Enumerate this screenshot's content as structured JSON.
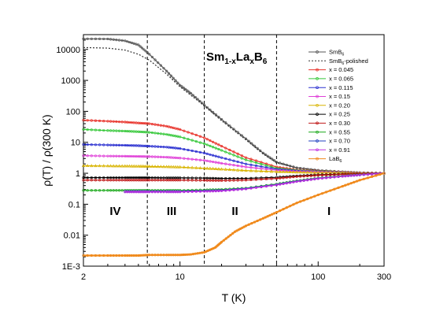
{
  "chart_data": {
    "type": "line",
    "title": "",
    "annotation": {
      "base": "Sm",
      "sub1": "1-x",
      "mid": "La",
      "sub2": "x",
      "end": "B",
      "sub3": "6"
    },
    "xlabel": "T (K)",
    "ylabel": "ρ(T) / ρ(300 K)",
    "xscale": "log",
    "yscale": "log",
    "xlim": [
      2,
      300
    ],
    "ylim": [
      0.001,
      30000
    ],
    "x_ticks": [
      {
        "value": 2,
        "label": "2"
      },
      {
        "value": 10,
        "label": "10"
      },
      {
        "value": 100,
        "label": "100"
      },
      {
        "value": 300,
        "label": "300"
      }
    ],
    "y_ticks": [
      {
        "value": 0.001,
        "label": "1E-3"
      },
      {
        "value": 0.01,
        "label": "0.01"
      },
      {
        "value": 0.1,
        "label": "0.1"
      },
      {
        "value": 1,
        "label": "1"
      },
      {
        "value": 10,
        "label": "10"
      },
      {
        "value": 100,
        "label": "100"
      },
      {
        "value": 1000,
        "label": "1000"
      },
      {
        "value": 10000,
        "label": "10000"
      }
    ],
    "region_boundaries_K": [
      5.8,
      15,
      50
    ],
    "regions": [
      {
        "label": "IV",
        "x": 3.4,
        "y": 0.06
      },
      {
        "label": "III",
        "x": 8.7,
        "y": 0.06
      },
      {
        "label": "II",
        "x": 25,
        "y": 0.06
      },
      {
        "label": "I",
        "x": 120,
        "y": 0.06
      }
    ],
    "legend_position": "top-right",
    "grid": false,
    "series": [
      {
        "name": "SmB",
        "name_sub": "6",
        "color": "#555555",
        "marker": "circle",
        "dash": "",
        "points": [
          [
            2,
            22000
          ],
          [
            3,
            21800
          ],
          [
            4,
            19000
          ],
          [
            5,
            14000
          ],
          [
            6,
            7000
          ],
          [
            8,
            2000
          ],
          [
            10,
            700
          ],
          [
            12,
            380
          ],
          [
            15,
            160
          ],
          [
            20,
            55
          ],
          [
            30,
            13
          ],
          [
            40,
            4.5
          ],
          [
            50,
            2.3
          ],
          [
            70,
            1.5
          ],
          [
            100,
            1.25
          ],
          [
            150,
            1.12
          ],
          [
            200,
            1.05
          ],
          [
            300,
            1
          ]
        ]
      },
      {
        "name": "SmB",
        "name_sub": "6",
        "name_suffix": "-polished",
        "color": "#333333",
        "marker": "",
        "dash": "2,2",
        "points": [
          [
            2,
            11500
          ],
          [
            3,
            11000
          ],
          [
            4,
            9500
          ],
          [
            5,
            7000
          ],
          [
            6,
            4500
          ],
          [
            8,
            1600
          ],
          [
            10,
            620
          ],
          [
            12,
            330
          ],
          [
            15,
            150
          ],
          [
            20,
            50
          ],
          [
            30,
            12
          ],
          [
            40,
            4.2
          ],
          [
            50,
            2.2
          ],
          [
            70,
            1.5
          ],
          [
            100,
            1.25
          ],
          [
            150,
            1.12
          ],
          [
            200,
            1.05
          ],
          [
            300,
            1
          ]
        ]
      },
      {
        "name": "x = 0.045",
        "color": "#e8322a",
        "marker": "circle",
        "dash": "",
        "points": [
          [
            2,
            52
          ],
          [
            3,
            48
          ],
          [
            4,
            45
          ],
          [
            5,
            42
          ],
          [
            6,
            40
          ],
          [
            8,
            33
          ],
          [
            10,
            26
          ],
          [
            15,
            14
          ],
          [
            20,
            7.5
          ],
          [
            30,
            3.2
          ],
          [
            50,
            1.6
          ],
          [
            70,
            1.3
          ],
          [
            100,
            1.18
          ],
          [
            150,
            1.1
          ],
          [
            200,
            1.05
          ],
          [
            300,
            1
          ]
        ]
      },
      {
        "name": "x = 0.065",
        "color": "#36c83a",
        "marker": "circle",
        "dash": "",
        "points": [
          [
            2,
            26
          ],
          [
            3,
            24
          ],
          [
            4,
            23
          ],
          [
            5,
            22
          ],
          [
            6,
            21
          ],
          [
            8,
            18
          ],
          [
            10,
            15
          ],
          [
            15,
            9
          ],
          [
            20,
            5.5
          ],
          [
            30,
            2.7
          ],
          [
            50,
            1.45
          ],
          [
            70,
            1.25
          ],
          [
            100,
            1.15
          ],
          [
            150,
            1.08
          ],
          [
            200,
            1.04
          ],
          [
            300,
            1
          ]
        ]
      },
      {
        "name": "x = 0.115",
        "color": "#2b30d0",
        "marker": "circle",
        "dash": "",
        "points": [
          [
            2,
            8.5
          ],
          [
            3,
            8.2
          ],
          [
            4,
            8
          ],
          [
            5,
            7.8
          ],
          [
            6,
            7.5
          ],
          [
            8,
            7
          ],
          [
            10,
            6.3
          ],
          [
            15,
            4.5
          ],
          [
            20,
            3.2
          ],
          [
            30,
            2
          ],
          [
            50,
            1.35
          ],
          [
            70,
            1.2
          ],
          [
            100,
            1.12
          ],
          [
            150,
            1.06
          ],
          [
            200,
            1.03
          ],
          [
            300,
            1
          ]
        ]
      },
      {
        "name": "x = 0.15",
        "color": "#e040d8",
        "marker": "circle",
        "dash": "",
        "points": [
          [
            2,
            3.7
          ],
          [
            3,
            3.6
          ],
          [
            4,
            3.55
          ],
          [
            5,
            3.5
          ],
          [
            6,
            3.45
          ],
          [
            8,
            3.3
          ],
          [
            10,
            3.1
          ],
          [
            15,
            2.6
          ],
          [
            20,
            2.1
          ],
          [
            30,
            1.6
          ],
          [
            50,
            1.25
          ],
          [
            70,
            1.15
          ],
          [
            100,
            1.1
          ],
          [
            150,
            1.05
          ],
          [
            200,
            1.02
          ],
          [
            300,
            1
          ]
        ]
      },
      {
        "name": "x = 0.20",
        "color": "#d8b400",
        "marker": "triangle",
        "dash": "",
        "points": [
          [
            2,
            1.75
          ],
          [
            3,
            1.72
          ],
          [
            4,
            1.7
          ],
          [
            5,
            1.68
          ],
          [
            6,
            1.66
          ],
          [
            8,
            1.62
          ],
          [
            10,
            1.58
          ],
          [
            15,
            1.45
          ],
          [
            20,
            1.35
          ],
          [
            30,
            1.22
          ],
          [
            50,
            1.12
          ],
          [
            70,
            1.08
          ],
          [
            100,
            1.05
          ],
          [
            150,
            1.03
          ],
          [
            200,
            1.01
          ],
          [
            300,
            1
          ]
        ]
      },
      {
        "name": "x = 0.25",
        "color": "#000000",
        "marker": "circle",
        "dash": "",
        "points": [
          [
            2,
            0.72
          ],
          [
            3,
            0.72
          ],
          [
            4,
            0.72
          ],
          [
            5,
            0.72
          ],
          [
            6,
            0.72
          ],
          [
            8,
            0.71
          ],
          [
            10,
            0.71
          ],
          [
            15,
            0.7
          ],
          [
            20,
            0.68
          ],
          [
            30,
            0.68
          ],
          [
            50,
            0.74
          ],
          [
            70,
            0.82
          ],
          [
            100,
            0.89
          ],
          [
            150,
            0.94
          ],
          [
            200,
            0.97
          ],
          [
            300,
            1
          ]
        ]
      },
      {
        "name": "x = 0.30",
        "color": "#c01818",
        "marker": "circle",
        "dash": "",
        "points": [
          [
            2,
            0.6
          ],
          [
            3,
            0.6
          ],
          [
            4,
            0.6
          ],
          [
            5,
            0.6
          ],
          [
            6,
            0.6
          ],
          [
            8,
            0.6
          ],
          [
            10,
            0.6
          ],
          [
            15,
            0.59
          ],
          [
            20,
            0.58
          ],
          [
            30,
            0.6
          ],
          [
            50,
            0.68
          ],
          [
            70,
            0.78
          ],
          [
            100,
            0.86
          ],
          [
            150,
            0.92
          ],
          [
            200,
            0.96
          ],
          [
            300,
            1
          ]
        ]
      },
      {
        "name": "x = 0.55",
        "color": "#18a818",
        "marker": "circle",
        "dash": "",
        "points": [
          [
            2,
            0.28
          ],
          [
            3,
            0.28
          ],
          [
            4,
            0.28
          ],
          [
            5,
            0.28
          ],
          [
            6,
            0.28
          ],
          [
            8,
            0.28
          ],
          [
            10,
            0.28
          ],
          [
            15,
            0.29
          ],
          [
            20,
            0.3
          ],
          [
            30,
            0.33
          ],
          [
            50,
            0.45
          ],
          [
            70,
            0.57
          ],
          [
            100,
            0.7
          ],
          [
            150,
            0.82
          ],
          [
            200,
            0.9
          ],
          [
            300,
            1
          ]
        ]
      },
      {
        "name": "x = 0.70",
        "color": "#2040c0",
        "marker": "circle",
        "dash": "",
        "points": [
          [
            4,
            0.26
          ],
          [
            5,
            0.26
          ],
          [
            6,
            0.26
          ],
          [
            8,
            0.26
          ],
          [
            10,
            0.26
          ],
          [
            15,
            0.27
          ],
          [
            20,
            0.28
          ],
          [
            30,
            0.32
          ],
          [
            50,
            0.43
          ],
          [
            70,
            0.55
          ],
          [
            100,
            0.68
          ],
          [
            150,
            0.8
          ],
          [
            200,
            0.88
          ],
          [
            300,
            1
          ]
        ]
      },
      {
        "name": "x = 0.91",
        "color": "#c030e0",
        "marker": "circle",
        "dash": "",
        "points": [
          [
            4,
            0.25
          ],
          [
            5,
            0.25
          ],
          [
            6,
            0.25
          ],
          [
            8,
            0.25
          ],
          [
            10,
            0.25
          ],
          [
            15,
            0.26
          ],
          [
            20,
            0.27
          ],
          [
            30,
            0.31
          ],
          [
            50,
            0.42
          ],
          [
            70,
            0.54
          ],
          [
            100,
            0.67
          ],
          [
            150,
            0.8
          ],
          [
            200,
            0.88
          ],
          [
            300,
            1
          ]
        ]
      },
      {
        "name": "LaB",
        "name_sub": "6",
        "color": "#f08a1c",
        "marker": "circle",
        "dash": "",
        "thick": true,
        "points": [
          [
            2,
            0.0022
          ],
          [
            3,
            0.0022
          ],
          [
            4,
            0.0022
          ],
          [
            5,
            0.0022
          ],
          [
            6,
            0.0023
          ],
          [
            8,
            0.0023
          ],
          [
            10,
            0.0023
          ],
          [
            12,
            0.0024
          ],
          [
            15,
            0.0028
          ],
          [
            18,
            0.004
          ],
          [
            20,
            0.006
          ],
          [
            25,
            0.013
          ],
          [
            30,
            0.02
          ],
          [
            40,
            0.035
          ],
          [
            50,
            0.055
          ],
          [
            70,
            0.11
          ],
          [
            100,
            0.2
          ],
          [
            150,
            0.38
          ],
          [
            200,
            0.6
          ],
          [
            300,
            1
          ]
        ]
      }
    ]
  }
}
